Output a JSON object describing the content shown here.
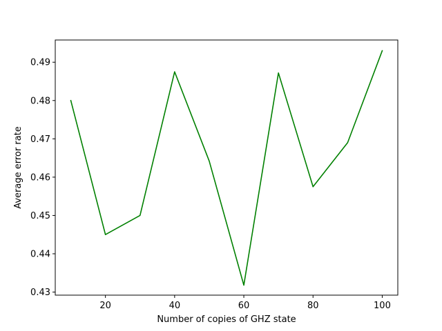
{
  "chart_data": {
    "type": "line",
    "title": "",
    "xlabel": "Number of copies of GHZ state",
    "ylabel": "Average error rate",
    "xlim": [
      5.5,
      104.5
    ],
    "ylim": [
      0.4292,
      0.4958
    ],
    "xticks": [
      20,
      40,
      60,
      80,
      100
    ],
    "xtick_labels": [
      "20",
      "40",
      "60",
      "80",
      "100"
    ],
    "yticks": [
      0.43,
      0.44,
      0.45,
      0.46,
      0.47,
      0.48,
      0.49
    ],
    "ytick_labels": [
      "0.43",
      "0.44",
      "0.45",
      "0.46",
      "0.47",
      "0.48",
      "0.49"
    ],
    "grid": false,
    "series": [
      {
        "color": "#008000",
        "x": [
          10,
          20,
          30,
          40,
          50,
          60,
          70,
          80,
          90,
          100
        ],
        "y": [
          0.48,
          0.445,
          0.45,
          0.4875,
          0.4642,
          0.4318,
          0.4872,
          0.4575,
          0.469,
          0.493
        ]
      }
    ]
  }
}
